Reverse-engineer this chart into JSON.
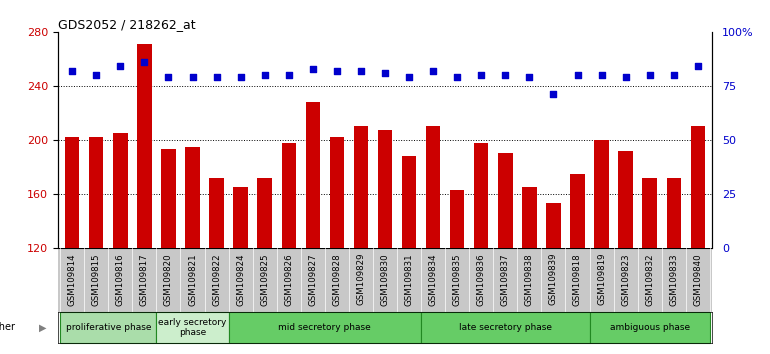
{
  "title": "GDS2052 / 218262_at",
  "samples": [
    "GSM109814",
    "GSM109815",
    "GSM109816",
    "GSM109817",
    "GSM109820",
    "GSM109821",
    "GSM109822",
    "GSM109824",
    "GSM109825",
    "GSM109826",
    "GSM109827",
    "GSM109828",
    "GSM109829",
    "GSM109830",
    "GSM109831",
    "GSM109834",
    "GSM109835",
    "GSM109836",
    "GSM109837",
    "GSM109838",
    "GSM109839",
    "GSM109818",
    "GSM109819",
    "GSM109823",
    "GSM109832",
    "GSM109833",
    "GSM109840"
  ],
  "counts": [
    202,
    202,
    205,
    271,
    193,
    195,
    172,
    165,
    172,
    198,
    228,
    202,
    210,
    207,
    188,
    210,
    163,
    198,
    190,
    165,
    153,
    175,
    200,
    192,
    172,
    172,
    210
  ],
  "percentile_ranks": [
    82,
    80,
    84,
    86,
    79,
    79,
    79,
    79,
    80,
    80,
    83,
    82,
    82,
    81,
    79,
    82,
    79,
    80,
    80,
    79,
    71,
    80,
    80,
    79,
    80,
    80,
    84
  ],
  "phases": [
    {
      "label": "proliferative phase",
      "start": 0,
      "end": 4,
      "color": "#aaddaa"
    },
    {
      "label": "early secretory\nphase",
      "start": 4,
      "end": 7,
      "color": "#cceecc"
    },
    {
      "label": "mid secretory phase",
      "start": 7,
      "end": 15,
      "color": "#66cc66"
    },
    {
      "label": "late secretory phase",
      "start": 15,
      "end": 22,
      "color": "#66cc66"
    },
    {
      "label": "ambiguous phase",
      "start": 22,
      "end": 27,
      "color": "#66cc66"
    }
  ],
  "bar_color": "#cc0000",
  "dot_color": "#0000cc",
  "ylim_left": [
    120,
    280
  ],
  "ylim_right": [
    0,
    100
  ],
  "yticks_left": [
    120,
    160,
    200,
    240,
    280
  ],
  "yticks_right": [
    0,
    25,
    50,
    75,
    100
  ],
  "ytick_labels_right": [
    "0",
    "25",
    "50",
    "75",
    "100%"
  ],
  "gridlines_at": [
    160,
    200,
    240
  ],
  "xtick_bg_color": "#c8c8c8",
  "phase_border_color": "#228822"
}
